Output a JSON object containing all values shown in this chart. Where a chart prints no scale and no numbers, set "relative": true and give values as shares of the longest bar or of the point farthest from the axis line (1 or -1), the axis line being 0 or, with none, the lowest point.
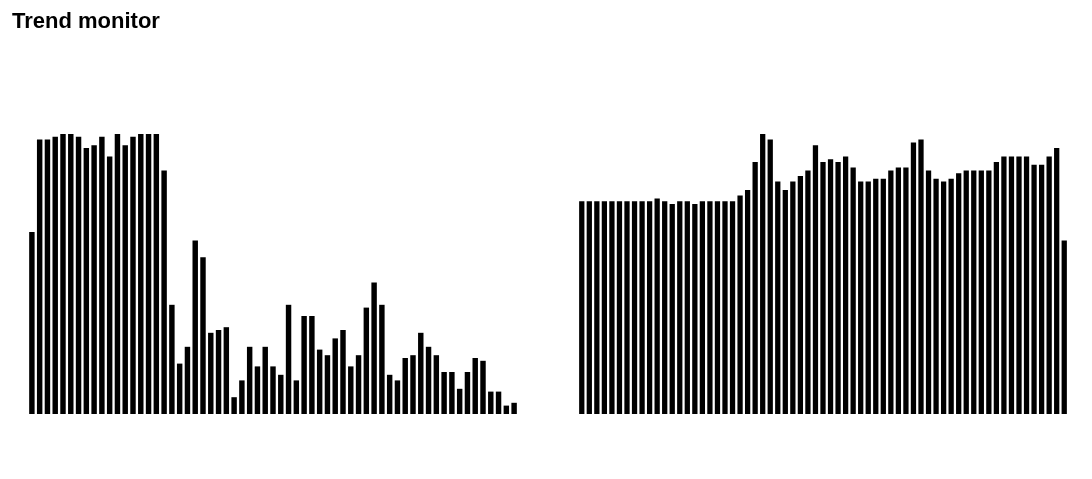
{
  "chart_data": [
    {
      "type": "bar",
      "title": "Trend monitor",
      "relative": true,
      "grid": false,
      "color": "#000000",
      "categories": [
        null,
        null,
        null,
        null,
        null,
        null,
        null,
        null,
        null,
        null,
        null,
        null,
        null,
        null,
        null,
        null,
        null,
        null,
        null,
        null,
        null,
        null,
        null,
        null,
        null,
        null,
        null,
        null,
        null,
        null,
        null,
        null,
        null,
        null,
        null,
        null,
        null,
        null,
        null,
        null,
        null,
        null,
        null,
        null,
        null,
        null,
        null,
        null,
        null,
        null,
        null,
        null,
        null,
        null,
        null,
        null,
        null,
        null,
        null,
        null,
        null,
        null,
        null
      ],
      "values": [
        0.65,
        0.98,
        0.98,
        0.99,
        1,
        1,
        0.99,
        0.95,
        0.96,
        0.99,
        0.92,
        1,
        0.96,
        0.99,
        1,
        1,
        1,
        0.87,
        0.39,
        0.18,
        0.24,
        0.62,
        0.56,
        0.29,
        0.3,
        0.31,
        0.06,
        0.12,
        0.24,
        0.17,
        0.24,
        0.17,
        0.14,
        0.39,
        0.12,
        0.35,
        0.35,
        0.23,
        0.21,
        0.27,
        0.3,
        0.17,
        0.21,
        0.38,
        0.47,
        0.39,
        0.14,
        0.12,
        0.2,
        0.21,
        0.29,
        0.24,
        0.21,
        0.15,
        0.15,
        0.09,
        0.15,
        0.2,
        0.19,
        0.08,
        0.08,
        0.03,
        0.04
      ]
    },
    {
      "type": "bar",
      "relative": true,
      "grid": false,
      "color": "#000000",
      "categories": [
        null,
        null,
        null,
        null,
        null,
        null,
        null,
        null,
        null,
        null,
        null,
        null,
        null,
        null,
        null,
        null,
        null,
        null,
        null,
        null,
        null,
        null,
        null,
        null,
        null,
        null,
        null,
        null,
        null,
        null,
        null,
        null,
        null,
        null,
        null,
        null,
        null,
        null,
        null,
        null,
        null,
        null,
        null,
        null,
        null,
        null,
        null,
        null,
        null,
        null,
        null,
        null,
        null,
        null,
        null,
        null,
        null,
        null,
        null,
        null,
        null,
        null,
        null,
        null,
        null
      ],
      "values": [
        0.76,
        0.76,
        0.76,
        0.76,
        0.76,
        0.76,
        0.76,
        0.76,
        0.76,
        0.76,
        0.77,
        0.76,
        0.75,
        0.76,
        0.76,
        0.75,
        0.76,
        0.76,
        0.76,
        0.76,
        0.76,
        0.78,
        0.8,
        0.9,
        1,
        0.98,
        0.83,
        0.8,
        0.83,
        0.85,
        0.87,
        0.96,
        0.9,
        0.91,
        0.9,
        0.92,
        0.88,
        0.83,
        0.83,
        0.84,
        0.84,
        0.87,
        0.88,
        0.88,
        0.97,
        0.98,
        0.87,
        0.84,
        0.83,
        0.84,
        0.86,
        0.87,
        0.87,
        0.87,
        0.87,
        0.9,
        0.92,
        0.92,
        0.92,
        0.92,
        0.89,
        0.89,
        0.92,
        0.95,
        0.62
      ]
    }
  ]
}
